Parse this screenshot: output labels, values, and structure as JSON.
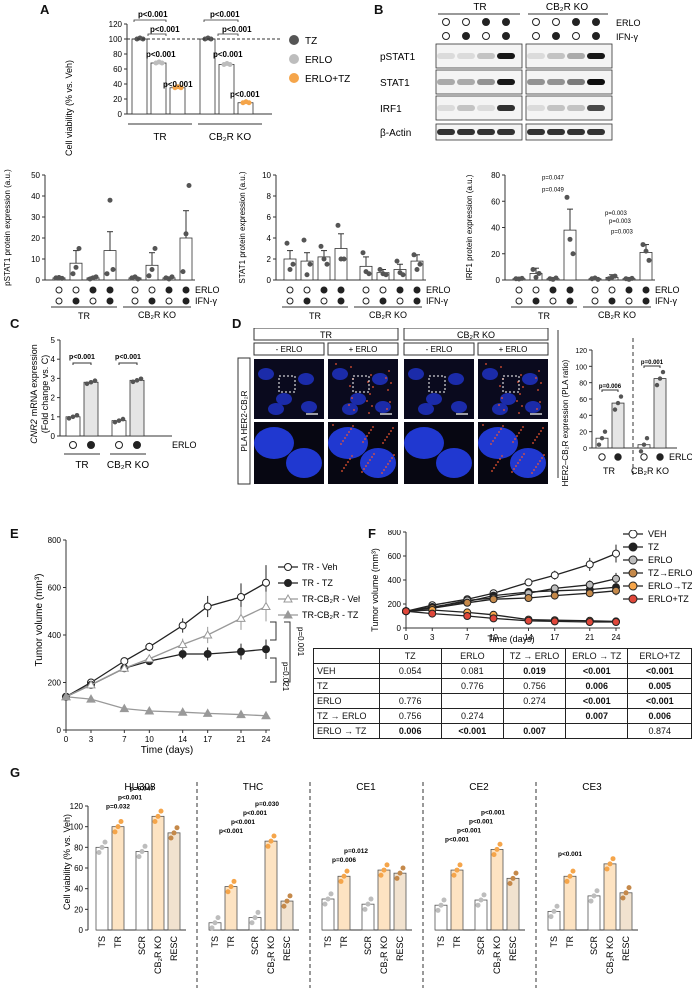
{
  "labels": {
    "A": "A",
    "B": "B",
    "C": "C",
    "D": "D",
    "E": "E",
    "F": "F",
    "G": "G"
  },
  "common": {
    "tr": "TR",
    "ko": "CB₂R KO",
    "erlo": "ERLO",
    "ifn": "IFN-γ",
    "minus_erlo": "- ERLO",
    "plus_erlo": "+ ERLO"
  },
  "colors": {
    "tz": "#555555",
    "erlo": "#bdbdbd",
    "erlotz": "#f5a54a",
    "red": "#e0473a",
    "brown": "#c5894a",
    "dark": "#222222"
  },
  "panelA": {
    "ylabel": "Cell viability (% vs. Veh)",
    "yticks": [
      "0",
      "20",
      "40",
      "60",
      "80",
      "100",
      "120"
    ],
    "legend": [
      "TZ",
      "ERLO",
      "ERLO+TZ"
    ],
    "pvalues": [
      "p<0.001",
      "p<0.001",
      "p<0.001",
      "p<0.001",
      "p<0.001",
      "p<0.001",
      "p<0.001",
      "p<0.001"
    ],
    "chart_data": {
      "type": "bar",
      "categories": [
        "TR",
        "CB2R KO"
      ],
      "series": [
        {
          "name": "TZ",
          "values": [
            100,
            100
          ]
        },
        {
          "name": "ERLO",
          "values": [
            68,
            66
          ]
        },
        {
          "name": "ERLO+TZ",
          "values": [
            35,
            15
          ]
        }
      ],
      "ylim": [
        0,
        120
      ]
    }
  },
  "panelB": {
    "blots": [
      "pSTAT1",
      "STAT1",
      "IRF1",
      "β-Actin"
    ]
  },
  "panelB2": {
    "charts": [
      {
        "ylabel": "pSTAT1 protein expression (a.u.)",
        "yticks": [
          "0",
          "10",
          "20",
          "30",
          "40",
          "50"
        ],
        "ymax": 50,
        "values": [
          1,
          8,
          1,
          14,
          1,
          7,
          1,
          20
        ],
        "err": [
          0.5,
          6,
          0.5,
          9,
          0.5,
          6,
          0.5,
          13
        ],
        "pts": [
          [
            1,
            1.2,
            0.8
          ],
          [
            3,
            6,
            15
          ],
          [
            0.5,
            1,
            1.5
          ],
          [
            3,
            38,
            5
          ],
          [
            1,
            1.5,
            0.5
          ],
          [
            2,
            5,
            15
          ],
          [
            1,
            0.5,
            1.5
          ],
          [
            4,
            22,
            45
          ]
        ]
      },
      {
        "ylabel": "STAT1 protein expression (a.u.)",
        "yticks": [
          "0",
          "2",
          "4",
          "6",
          "8",
          "10"
        ],
        "ymax": 10,
        "values": [
          2,
          1.8,
          2.2,
          3,
          1.3,
          0.7,
          1,
          1.8
        ],
        "err": [
          0.8,
          0.8,
          0.6,
          1.4,
          0.9,
          0.3,
          0.5,
          0.6
        ],
        "pts": [
          [
            3.5,
            1,
            1.5
          ],
          [
            3.8,
            0.5,
            1.5
          ],
          [
            3.2,
            2,
            1.5
          ],
          [
            5.2,
            2,
            2
          ],
          [
            2.6,
            0.8,
            0.6
          ],
          [
            1,
            0.6,
            0.5
          ],
          [
            1.8,
            0.7,
            0.5
          ],
          [
            2.4,
            1,
            1.5
          ]
        ]
      },
      {
        "ylabel": "IRF1 protein expression (a.u.)",
        "yticks": [
          "0",
          "20",
          "40",
          "60",
          "80"
        ],
        "ymax": 80,
        "values": [
          1,
          5,
          1,
          38,
          1,
          2,
          1,
          21
        ],
        "err": [
          0.5,
          4,
          0.5,
          16,
          0.5,
          2,
          0.5,
          6
        ],
        "pts": [
          [
            1,
            0.8,
            1.2
          ],
          [
            8,
            2,
            5
          ],
          [
            1,
            0.5,
            1.5
          ],
          [
            63,
            31,
            20
          ],
          [
            1,
            1.5,
            0.5
          ],
          [
            1,
            2,
            3
          ],
          [
            1,
            0.5,
            1.2
          ],
          [
            27,
            22,
            15
          ]
        ],
        "pvalues": [
          "p=0.047",
          "p=0.049",
          "p=0.003",
          "p=0.003",
          "p=0.003"
        ]
      }
    ]
  },
  "panelC": {
    "ylabel_italic": "CNR2",
    "ylabel": "mRNA expression",
    "ylabel2": "(Fold change vs. C)",
    "yticks": [
      "0",
      "1",
      "2",
      "3",
      "4",
      "5"
    ],
    "pvalues": [
      "p<0.001",
      "p<0.001"
    ],
    "chart_data": {
      "type": "bar",
      "categories": [
        "TR -ERLO",
        "TR +ERLO",
        "KO -ERLO",
        "KO +ERLO"
      ],
      "values": [
        1,
        2.8,
        0.8,
        2.9
      ],
      "ylim": [
        0,
        5
      ]
    }
  },
  "panelD": {
    "side": "PLA HER2-CB₂R",
    "ylabel": "HER2–CB₂R expression (PLA ratio)",
    "yticks": [
      "0",
      "20",
      "40",
      "60",
      "80",
      "100",
      "120"
    ],
    "pvalues": [
      "p=0.006",
      "p=0.001"
    ],
    "chart_data": {
      "type": "bar",
      "categories": [
        "TR -ERLO",
        "TR +ERLO",
        "KO -ERLO",
        "KO +ERLO"
      ],
      "values": [
        12,
        55,
        4,
        85
      ],
      "ylim": [
        0,
        120
      ]
    }
  },
  "panelE": {
    "ylabel": "Tumor volume (mm³)",
    "xlabel": "Time (days)",
    "yticks": [
      "0",
      "200",
      "400",
      "600",
      "800"
    ],
    "xticks": [
      "0",
      "3",
      "7",
      "10",
      "14",
      "17",
      "21",
      "24"
    ],
    "legend": [
      "TR - Veh",
      "TR - TZ",
      "TR-CB₂R - Veh",
      "TR-CB₂R - TZ"
    ],
    "pvalues": [
      "p=0.001",
      "p=0.021"
    ],
    "chart_data": {
      "type": "line",
      "x": [
        0,
        3,
        7,
        10,
        14,
        17,
        21,
        24
      ],
      "series": [
        {
          "name": "TR - Veh",
          "values": [
            140,
            200,
            290,
            350,
            440,
            520,
            560,
            620
          ]
        },
        {
          "name": "TR - TZ",
          "values": [
            140,
            190,
            260,
            290,
            320,
            320,
            330,
            340
          ]
        },
        {
          "name": "TR-CB₂R - Veh",
          "values": [
            140,
            190,
            260,
            300,
            360,
            400,
            470,
            520
          ]
        },
        {
          "name": "TR-CB₂R - TZ",
          "values": [
            140,
            130,
            90,
            80,
            75,
            70,
            65,
            60
          ]
        }
      ],
      "ylim": [
        0,
        800
      ]
    }
  },
  "panelF": {
    "ylabel": "Tumor volume (mm³)",
    "xlabel": "Time (days)",
    "yticks": [
      "0",
      "200",
      "400",
      "600",
      "800"
    ],
    "xticks": [
      "0",
      "3",
      "7",
      "10",
      "14",
      "17",
      "21",
      "24"
    ],
    "legend": [
      "VEH",
      "TZ",
      "ERLO",
      "TZ→ERLO",
      "ERLO→TZ",
      "ERLO+TZ"
    ],
    "chart_data": {
      "type": "line",
      "x": [
        0,
        3,
        7,
        10,
        14,
        17,
        21,
        24
      ],
      "series": [
        {
          "name": "VEH",
          "values": [
            140,
            190,
            240,
            290,
            380,
            440,
            530,
            620
          ]
        },
        {
          "name": "TZ",
          "values": [
            140,
            175,
            220,
            270,
            300,
            310,
            320,
            340
          ]
        },
        {
          "name": "ERLO",
          "values": [
            140,
            170,
            230,
            250,
            290,
            330,
            360,
            410
          ]
        },
        {
          "name": "TZ→ERLO",
          "values": [
            140,
            165,
            210,
            240,
            250,
            270,
            290,
            310
          ]
        },
        {
          "name": "ERLO→TZ",
          "values": [
            140,
            150,
            130,
            110,
            70,
            65,
            60,
            55
          ]
        },
        {
          "name": "ERLO+TZ",
          "values": [
            140,
            120,
            100,
            80,
            60,
            55,
            50,
            50
          ]
        }
      ],
      "ylim": [
        0,
        800
      ]
    },
    "table": {
      "header": [
        "",
        "TZ",
        "ERLO",
        "TZ → ERLO",
        "ERLO → TZ",
        "ERLO+TZ"
      ],
      "rows": [
        [
          "VEH",
          "0.054",
          "0.081",
          "0.019",
          "<0.001",
          "<0.001"
        ],
        [
          "TZ",
          "",
          "0.776",
          "0.756",
          "0.006",
          "0.005"
        ],
        [
          "ERLO",
          "0.776",
          "",
          "0.274",
          "<0.001",
          "<0.001"
        ],
        [
          "TZ → ERLO",
          "0.756",
          "0.274",
          "",
          "0.007",
          "0.006"
        ],
        [
          "ERLO → TZ",
          "0.006",
          "<0.001",
          "0.007",
          "",
          "0.874"
        ]
      ]
    }
  },
  "panelG": {
    "ylabel": "Cell viability (% vs. Veh)",
    "yticks": [
      "0",
      "20",
      "40",
      "60",
      "80",
      "100",
      "120"
    ],
    "groups": [
      {
        "title": "HU308",
        "values": [
          80,
          100,
          76,
          110,
          94
        ],
        "pvalues": [
          "p=0.032",
          "p<0.001",
          "p=0.047"
        ]
      },
      {
        "title": "THC",
        "values": [
          7,
          42,
          12,
          86,
          28
        ],
        "pvalues": [
          "p<0.001",
          "p<0.001",
          "p<0.001",
          "p=0.030"
        ]
      },
      {
        "title": "CE1",
        "values": [
          30,
          52,
          25,
          58,
          55
        ],
        "pvalues": [
          "p=0.006",
          "p=0.012"
        ]
      },
      {
        "title": "CE2",
        "values": [
          24,
          58,
          29,
          78,
          50
        ],
        "pvalues": [
          "p<0.001",
          "p<0.001",
          "p<0.001",
          "p<0.001"
        ]
      },
      {
        "title": "CE3",
        "values": [
          18,
          52,
          33,
          64,
          36
        ],
        "pvalues": [
          "p<0.001"
        ]
      }
    ],
    "xcats": [
      "TS",
      "TR",
      "SCR",
      "CB₂R KO",
      "RESC"
    ]
  }
}
